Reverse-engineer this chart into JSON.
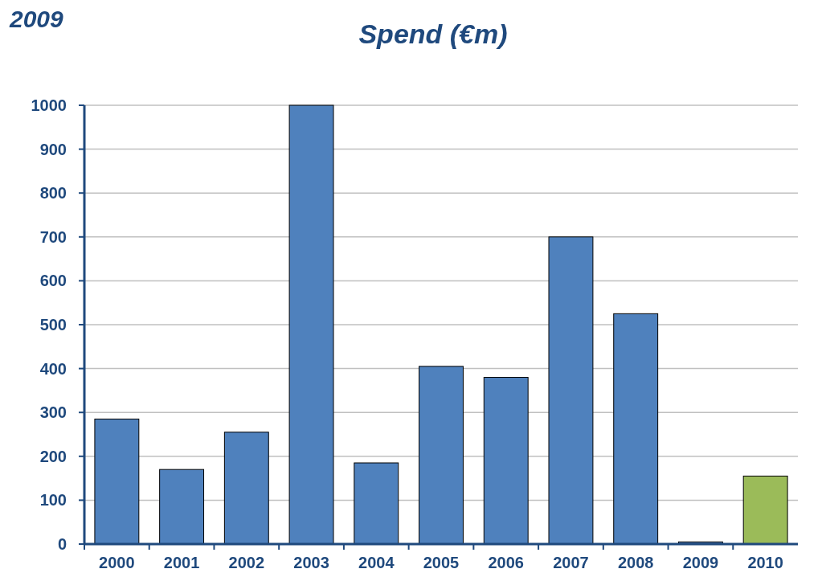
{
  "chart_data": {
    "type": "bar",
    "title": "Spend (€m)",
    "annotations": [
      "2009"
    ],
    "categories": [
      "2000",
      "2001",
      "2002",
      "2003",
      "2004",
      "2005",
      "2006",
      "2007",
      "2008",
      "2009",
      "2010"
    ],
    "values": [
      285,
      170,
      255,
      1000,
      185,
      405,
      380,
      700,
      525,
      5,
      155
    ],
    "colors": [
      "#4f81bd",
      "#4f81bd",
      "#4f81bd",
      "#4f81bd",
      "#4f81bd",
      "#4f81bd",
      "#4f81bd",
      "#4f81bd",
      "#4f81bd",
      "#4f81bd",
      "#9bbb59"
    ],
    "ylim": [
      0,
      1000
    ],
    "yticks": [
      0,
      100,
      200,
      300,
      400,
      500,
      600,
      700,
      800,
      900,
      1000
    ],
    "grid": "y"
  }
}
